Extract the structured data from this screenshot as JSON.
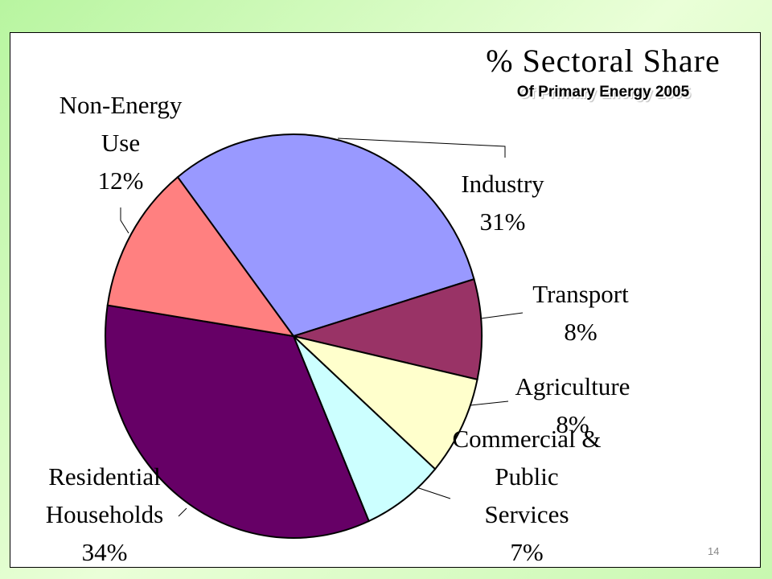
{
  "chart_data": {
    "type": "pie",
    "title": "% Sectoral Share",
    "subtitle": "Of  Primary Energy 2005",
    "categories": [
      "Industry",
      "Transport",
      "Agriculture",
      "Commercial & Public Services",
      "Residential Households",
      "Non-Energy Use"
    ],
    "values": [
      31,
      8,
      8,
      7,
      34,
      12
    ],
    "value_labels": [
      "31%",
      "8%",
      "8%",
      "7%",
      "34%",
      "12%"
    ],
    "colors": [
      "#9999ff",
      "#993366",
      "#ffffcc",
      "#ccffff",
      "#660066",
      "#ff8080"
    ]
  },
  "page_number": "14"
}
